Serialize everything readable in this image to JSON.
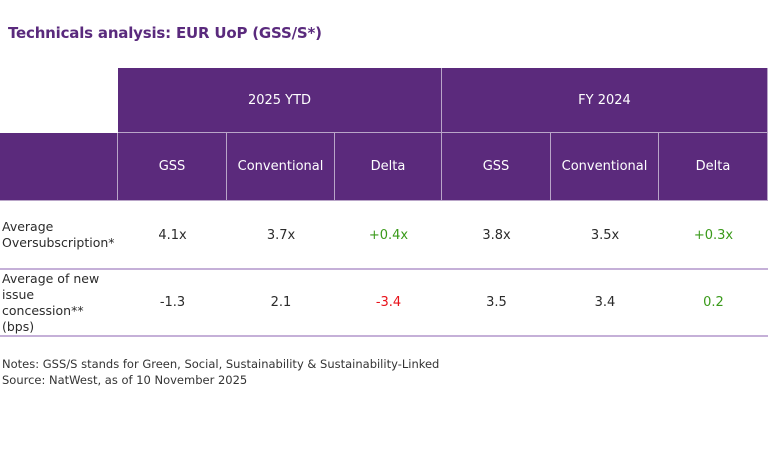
{
  "title": "Technicals analysis: EUR UoP (GSS/S*)",
  "colors": {
    "header": "#5b2a7c",
    "positive": "#3a9a1a",
    "negative": "#e8121a",
    "divider": "#c5b0d8"
  },
  "chart_data": {
    "type": "table",
    "groups": [
      "2025 YTD",
      "FY 2024"
    ],
    "columns": [
      "GSS",
      "Conventional",
      "Delta",
      "GSS",
      "Conventional",
      "Delta"
    ],
    "rows": [
      {
        "label": "Average Oversubscription*",
        "values": [
          "4.1x",
          "3.7x",
          "+0.4x",
          "3.8x",
          "3.5x",
          "+0.3x"
        ]
      },
      {
        "label": "Average of new issue concession** (bps)",
        "values": [
          "-1.3",
          "2.1",
          "-3.4",
          "3.5",
          "3.4",
          "0.2"
        ]
      }
    ]
  },
  "notes": [
    "Notes: GSS/S stands for Green, Social, Sustainability & Sustainability-Linked",
    "Source: NatWest, as of 10 November 2025"
  ]
}
